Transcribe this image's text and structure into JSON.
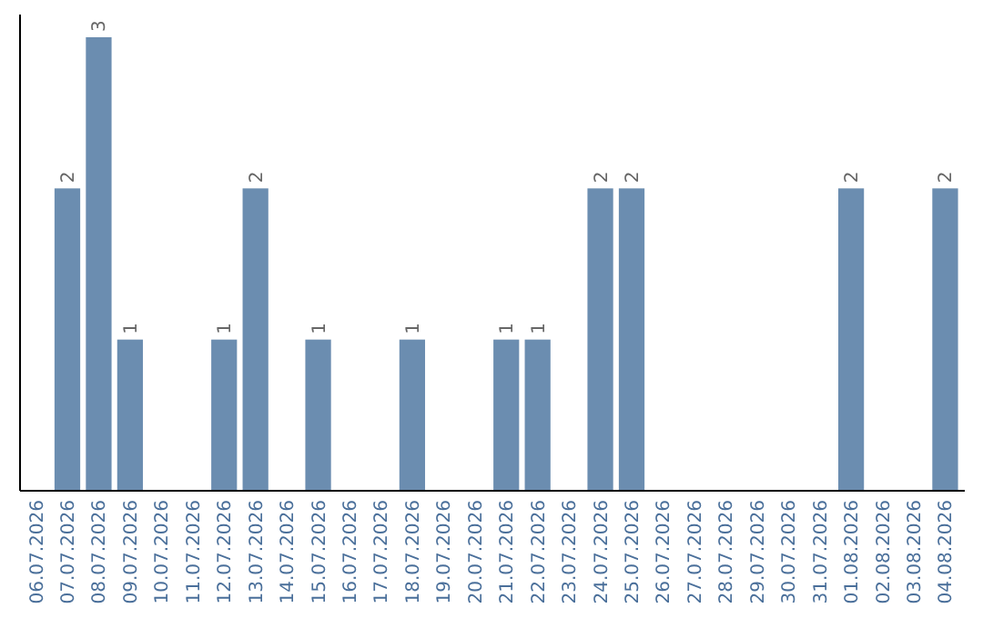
{
  "chart_data": {
    "type": "bar",
    "categories": [
      "06.07.2026",
      "07.07.2026",
      "08.07.2026",
      "09.07.2026",
      "10.07.2026",
      "11.07.2026",
      "12.07.2026",
      "13.07.2026",
      "14.07.2026",
      "15.07.2026",
      "16.07.2026",
      "17.07.2026",
      "18.07.2026",
      "19.07.2026",
      "20.07.2026",
      "21.07.2026",
      "22.07.2026",
      "23.07.2026",
      "24.07.2026",
      "25.07.2026",
      "26.07.2026",
      "27.07.2026",
      "28.07.2026",
      "29.07.2026",
      "30.07.2026",
      "31.07.2026",
      "01.08.2026",
      "02.08.2026",
      "03.08.2026",
      "04.08.2026"
    ],
    "values": [
      0,
      2,
      3,
      1,
      0,
      0,
      1,
      2,
      0,
      1,
      0,
      0,
      1,
      0,
      0,
      1,
      1,
      0,
      2,
      2,
      0,
      0,
      0,
      0,
      0,
      0,
      2,
      0,
      0,
      2
    ],
    "value_labels": [
      null,
      "2",
      "3",
      "1",
      null,
      null,
      "1",
      "2",
      null,
      "1",
      null,
      null,
      "1",
      null,
      null,
      "1",
      "1",
      null,
      "2",
      "2",
      null,
      null,
      null,
      null,
      null,
      null,
      "2",
      null,
      null,
      "2"
    ],
    "color": "#6b8db0",
    "ylim": [
      0,
      3.15
    ],
    "tick_labels": "x"
  }
}
